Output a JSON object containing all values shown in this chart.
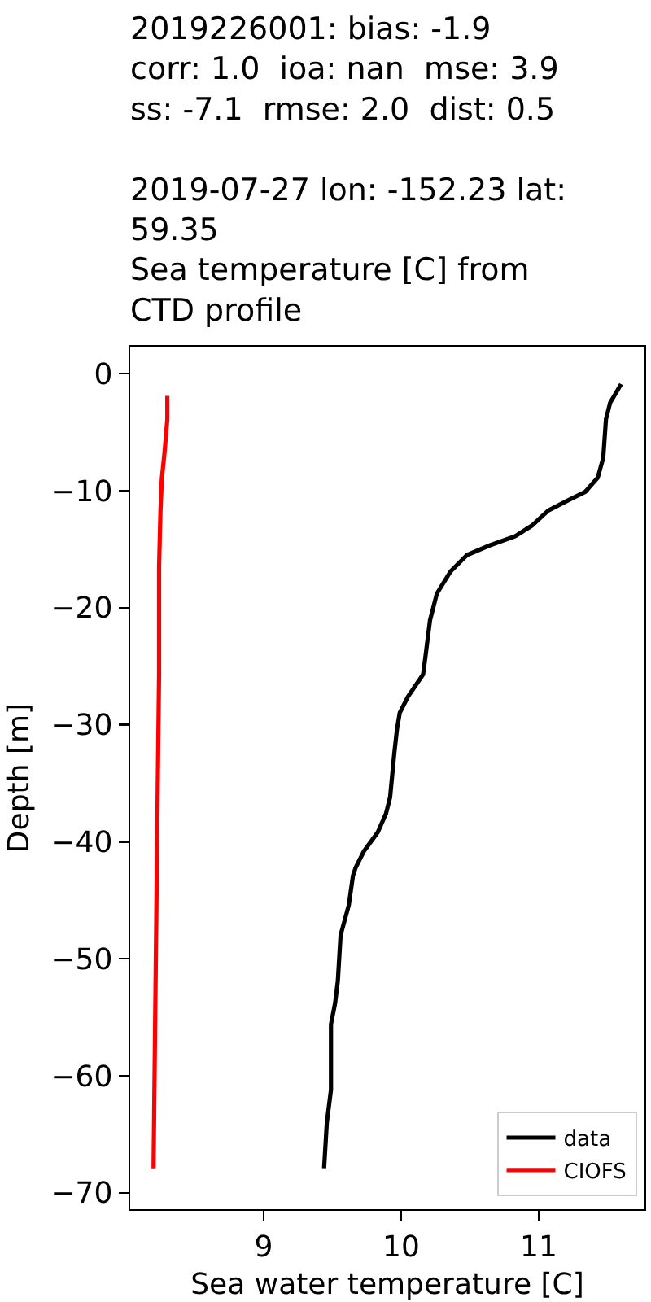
{
  "chart_data": {
    "type": "line",
    "title": "2019226001: bias: -1.9\ncorr: 1.0  ioa: nan  mse: 3.9\nss: -7.1  rmse: 2.0  dist: 0.5\n\n2019-07-27 lon: -152.23 lat:\n59.35\nSea temperature [C] from\nCTD profile",
    "xlabel": "Sea water temperature [C]",
    "ylabel": "Depth [m]",
    "xlim": [
      8.03,
      11.77
    ],
    "xticks": [
      9,
      10,
      11
    ],
    "ylim": [
      -71.4,
      2.3
    ],
    "yticks": [
      0,
      -10,
      -20,
      -30,
      -40,
      -50,
      -60,
      -70
    ],
    "legend": "bottom right",
    "series": [
      {
        "name": "data",
        "color": "#000000",
        "x": [
          11.6,
          11.52,
          11.49,
          11.47,
          11.43,
          11.34,
          11.22,
          11.07,
          10.95,
          10.83,
          10.64,
          10.48,
          10.36,
          10.26,
          10.21,
          10.18,
          10.16,
          10.05,
          9.99,
          9.97,
          9.95,
          9.92,
          9.89,
          9.83,
          9.73,
          9.67,
          9.65,
          9.62,
          9.56,
          9.54,
          9.52,
          9.49,
          9.49,
          9.46,
          9.44
        ],
        "values": [
          -0.9,
          -2.5,
          -3.9,
          -7.2,
          -8.9,
          -10.1,
          -10.8,
          -11.7,
          -13.0,
          -13.9,
          -14.7,
          -15.5,
          -16.9,
          -18.8,
          -21.1,
          -23.9,
          -25.7,
          -27.6,
          -29.0,
          -30.4,
          -32.5,
          -36.2,
          -37.6,
          -39.2,
          -40.8,
          -42.2,
          -42.9,
          -45.4,
          -48.0,
          -51.9,
          -53.8,
          -55.6,
          -61.2,
          -64.0,
          -67.9
        ]
      },
      {
        "name": "CIOFS",
        "color": "#ff0000",
        "x": [
          8.3,
          8.3,
          8.28,
          8.26,
          8.25,
          8.24,
          8.24,
          8.23,
          8.2
        ],
        "values": [
          -1.9,
          -3.9,
          -6.7,
          -9.0,
          -11.8,
          -16.5,
          -25.7,
          -35.5,
          -67.9
        ]
      }
    ]
  }
}
